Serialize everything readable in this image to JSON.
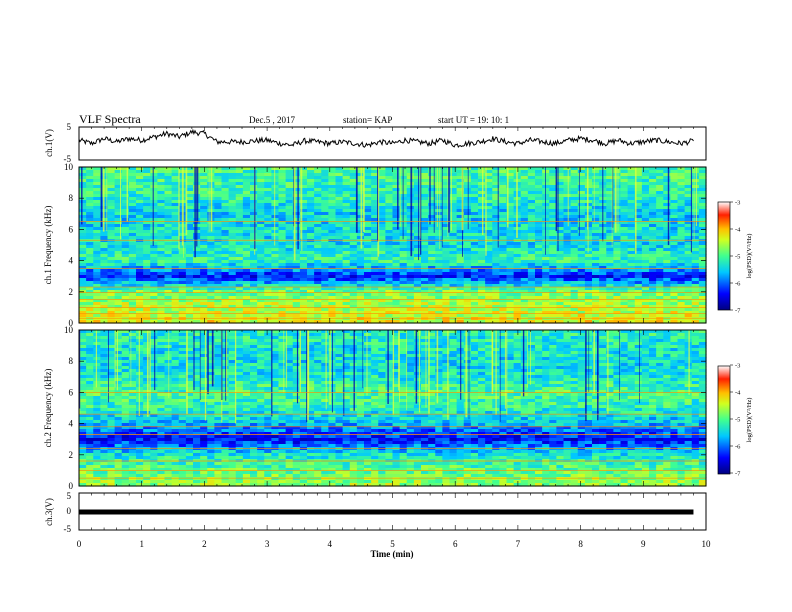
{
  "header": {
    "title": "VLF Spectra",
    "date": "Dec.5 , 2017",
    "station": "station= KAP",
    "start": "start  UT =   19: 10: 1"
  },
  "colors": {
    "trace": "#000000",
    "colormap": [
      "#00007f",
      "#0000ff",
      "#0080ff",
      "#00e0ff",
      "#33ff99",
      "#a0ff30",
      "#ffff00",
      "#ff8000",
      "#ff0000",
      "#ffffff"
    ]
  },
  "chart_data": [
    {
      "type": "line",
      "panel": "ch1-waveform",
      "ylabel": "ch.1(V)",
      "ylim": [
        -5,
        5
      ],
      "yticks": [
        "5",
        "-5"
      ],
      "xlim": [
        0,
        10
      ],
      "series": [
        {
          "x": [
            0,
            0.2,
            0.4,
            0.6,
            0.8,
            1.0,
            1.2,
            1.4,
            1.6,
            1.8,
            2.0,
            2.2,
            2.4,
            2.6,
            2.8,
            3.0,
            3.2,
            3.4,
            3.6,
            3.8,
            4.0,
            4.2,
            4.4,
            4.6,
            4.8,
            5.0,
            5.2,
            5.4,
            5.6,
            5.8,
            6.0,
            6.2,
            6.4,
            6.6,
            6.8,
            7.0,
            7.2,
            7.4,
            7.6,
            7.8,
            8.0,
            8.2,
            8.4,
            8.6,
            8.8,
            9.0,
            9.2,
            9.4,
            9.6,
            9.8
          ],
          "values": [
            1.0,
            0.0,
            1.5,
            0.5,
            1.5,
            1.0,
            2.0,
            3.0,
            2.0,
            3.5,
            3.0,
            0.5,
            0.5,
            0.5,
            0.8,
            1.0,
            0.0,
            -0.5,
            0.8,
            0.5,
            0.0,
            0.5,
            0.0,
            -0.5,
            0.5,
            0.0,
            1.0,
            0.5,
            0.0,
            1.0,
            -0.5,
            0.0,
            0.5,
            1.5,
            0.5,
            0.0,
            1.0,
            0.5,
            0.0,
            1.0,
            1.5,
            1.0,
            0.0,
            1.0,
            0.0,
            0.5,
            1.0,
            0.5,
            0.0,
            0.8
          ]
        }
      ]
    },
    {
      "type": "heatmap",
      "panel": "ch1-spectrogram",
      "ylabel": "ch.1 Frequency (kHz)",
      "ylim": [
        0,
        10
      ],
      "yticks": [
        "0",
        "2",
        "4",
        "6",
        "8",
        "10"
      ],
      "xlim": [
        0,
        10
      ],
      "colorbar": {
        "label": "log(PSD)(V²/Hz)",
        "range": [
          -7,
          -3
        ],
        "ticks": [
          "-3",
          "-4",
          "-5",
          "-6",
          "-7"
        ]
      },
      "profile_freq_khz": [
        0,
        1,
        2,
        3,
        4,
        5,
        6,
        7,
        8,
        9,
        10
      ],
      "profile_log_psd": [
        -4.3,
        -4.5,
        -4.8,
        -6.3,
        -5.1,
        -5.4,
        -5.4,
        -5.5,
        -5.2,
        -5.1,
        -5.0
      ],
      "lines_khz": [
        0.3,
        0.6,
        1.0,
        1.5,
        1.95,
        2.3,
        3.5,
        5.3,
        6.5
      ]
    },
    {
      "type": "heatmap",
      "panel": "ch2-spectrogram",
      "ylabel": "ch.2 Frequency (kHz)",
      "ylim": [
        0,
        10
      ],
      "yticks": [
        "0",
        "2",
        "4",
        "6",
        "8",
        "10"
      ],
      "xlim": [
        0,
        10
      ],
      "colorbar": {
        "label": "log(PSD)(V²/Hz)",
        "range": [
          -7,
          -3
        ],
        "ticks": [
          "-3",
          "-4",
          "-5",
          "-6",
          "-7"
        ]
      },
      "profile_freq_khz": [
        0,
        1,
        2,
        3,
        4,
        5,
        6,
        7,
        8,
        9,
        10
      ],
      "profile_log_psd": [
        -4.6,
        -4.9,
        -5.3,
        -6.4,
        -5.6,
        -5.2,
        -5.0,
        -5.3,
        -5.4,
        -5.3,
        -5.2
      ],
      "lines_khz": [
        0.5,
        1.0,
        1.6,
        2.4,
        3.3,
        3.8,
        4.6,
        6.0
      ]
    },
    {
      "type": "line",
      "panel": "ch3-waveform",
      "ylabel": "ch.3(V)",
      "ylim": [
        -5,
        5
      ],
      "yticks": [
        "5",
        "0",
        "-5"
      ],
      "xlim": [
        0,
        10
      ],
      "series": [
        {
          "x": [
            0,
            9.8
          ],
          "values": [
            0,
            0
          ]
        }
      ]
    }
  ],
  "x_axis": {
    "label": "Time  (min)",
    "ticks": [
      "0",
      "1",
      "2",
      "3",
      "4",
      "5",
      "6",
      "7",
      "8",
      "9",
      "10"
    ]
  }
}
